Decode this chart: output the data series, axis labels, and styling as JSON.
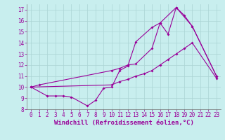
{
  "xlabel": "Windchill (Refroidissement éolien,°C)",
  "bg_color": "#c8eeee",
  "grid_color": "#aad4d4",
  "line_color": "#990099",
  "xlim": [
    -0.5,
    23.5
  ],
  "ylim": [
    8,
    17.5
  ],
  "xticks": [
    0,
    1,
    2,
    3,
    4,
    5,
    6,
    7,
    8,
    9,
    10,
    11,
    12,
    13,
    14,
    15,
    16,
    17,
    18,
    19,
    20,
    21,
    22,
    23
  ],
  "yticks": [
    8,
    9,
    10,
    11,
    12,
    13,
    14,
    15,
    16,
    17
  ],
  "s1x": [
    0,
    1,
    10,
    11,
    12,
    13,
    15,
    16,
    17,
    18,
    19,
    20,
    23
  ],
  "s1y": [
    10.0,
    10.2,
    11.5,
    11.7,
    12.0,
    12.1,
    13.5,
    15.8,
    14.8,
    17.2,
    16.5,
    15.5,
    11.0
  ],
  "s2x": [
    0,
    2,
    3,
    4,
    5,
    7,
    8,
    9,
    10,
    11,
    12,
    13,
    15,
    16,
    18,
    20,
    23
  ],
  "s2y": [
    10.0,
    9.2,
    9.2,
    9.2,
    9.1,
    8.3,
    8.8,
    9.9,
    10.0,
    11.5,
    11.9,
    14.1,
    15.4,
    15.8,
    17.2,
    15.5,
    11.0
  ],
  "s3x": [
    0,
    10,
    11,
    12,
    13,
    14,
    15,
    16,
    17,
    18,
    19,
    20,
    23
  ],
  "s3y": [
    10.0,
    10.2,
    10.5,
    10.7,
    11.0,
    11.2,
    11.5,
    12.0,
    12.5,
    13.0,
    13.5,
    14.0,
    10.8
  ],
  "tick_fontsize": 5.5,
  "xlabel_fontsize": 6.5,
  "linewidth": 0.8,
  "markersize": 2.0
}
